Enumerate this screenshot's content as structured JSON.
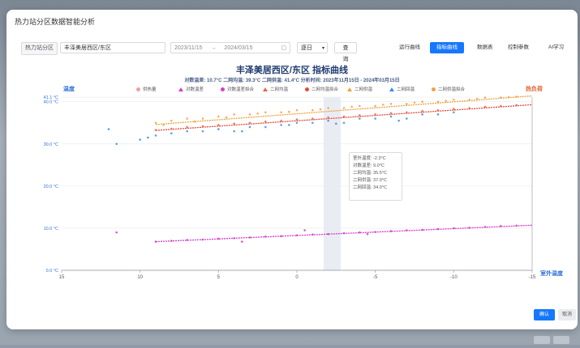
{
  "dialog": {
    "title": "热力站分区数据智能分析"
  },
  "toolbar": {
    "station_label": "热力站分区",
    "station_value": "丰泽美居西区/东区",
    "date_start": "2023/11/15",
    "date_sep": "→",
    "date_end": "2024/03/15",
    "mode_value": "逐日",
    "query_label": "查 询"
  },
  "tabs": [
    {
      "label": "运行曲线",
      "active": false
    },
    {
      "label": "指标曲线",
      "active": true
    },
    {
      "label": "数据表",
      "active": false
    },
    {
      "label": "控制参数",
      "active": false
    },
    {
      "label": "AI学习",
      "active": false
    }
  ],
  "chart": {
    "title": "丰泽美居西区/东区 指标曲线",
    "subtitle": "对数温差: 10.7°C  二网均温: 39.3°C  二网供温: 41.4°C  分析时间: 2023年11月15日 - 2024年03月15日"
  },
  "legend": [
    {
      "label": "供热量",
      "color": "#f0a0a0",
      "shape": "dot"
    },
    {
      "label": "对数温差",
      "color": "#d43fc8",
      "shape": "tri"
    },
    {
      "label": "对数温差拟合",
      "color": "#d43fc8",
      "shape": "dot"
    },
    {
      "label": "二网均温",
      "color": "#e8664a",
      "shape": "tri"
    },
    {
      "label": "二网均温拟合",
      "color": "#e84a3a",
      "shape": "dot"
    },
    {
      "label": "二网供温",
      "color": "#f2a240",
      "shape": "tri"
    },
    {
      "label": "二网回温",
      "color": "#3d8ee8",
      "shape": "tri"
    },
    {
      "label": "二网供温拟合",
      "color": "#f2a240",
      "shape": "dot"
    }
  ],
  "tooltip": {
    "lines": [
      "室外温度: -2.3°C",
      "对数温差: 9.0°C",
      "二网均温: 35.5°C",
      "二网供温: 37.0°C",
      "二网回温: 34.0°C"
    ]
  },
  "chart_data": {
    "type": "scatter",
    "title": "丰泽美居西区/东区 指标曲线",
    "xlabel": "室外温度",
    "ylabel": "温度",
    "y2label": "热负荷",
    "xlim": [
      15,
      -15
    ],
    "ylim": [
      0,
      41.1
    ],
    "x_ticks": [
      15,
      10,
      5,
      0,
      -5,
      -10,
      -15
    ],
    "y_ticks": [
      0,
      10,
      20,
      30,
      40,
      41.1
    ],
    "y_tick_labels": [
      "0.0 °C",
      "10.0 °C",
      "20.0 °C",
      "30.0 °C",
      "40.0 °C",
      "41.1 °C"
    ],
    "fits": [
      {
        "name": "二网供温拟合",
        "color": "#f2a240",
        "x": [
          9,
          -15
        ],
        "y": [
          34.6,
          41.4
        ]
      },
      {
        "name": "二网均温拟合",
        "color": "#e84a3a",
        "x": [
          9,
          -15
        ],
        "y": [
          33.2,
          39.3
        ]
      },
      {
        "name": "对数温差拟合",
        "color": "#d43fc8",
        "x": [
          9,
          -15
        ],
        "y": [
          6.8,
          10.7
        ]
      }
    ],
    "series": [
      {
        "name": "二网供温",
        "color": "#f2a240",
        "x": [
          9,
          8,
          7,
          6,
          5,
          4,
          3,
          2,
          1,
          0,
          -1,
          -2,
          -3,
          -4,
          -5,
          -6,
          -7,
          -8,
          -9,
          -10,
          -11,
          -12,
          -13,
          -14,
          8.5,
          6.5,
          4.5,
          2.5,
          0.5,
          -1.5,
          -3.5,
          -5.5,
          -7.5,
          -9.5,
          -11.5,
          -13.5
        ],
        "y": [
          35,
          35.5,
          36,
          36,
          36.5,
          37,
          37,
          37.5,
          37.5,
          38,
          38,
          38.5,
          38.5,
          39,
          39,
          39.5,
          39.5,
          40,
          40,
          40.5,
          40.5,
          41,
          41,
          41.2,
          34.5,
          35.3,
          36.3,
          37.2,
          37.6,
          38.2,
          38.8,
          39.3,
          39.8,
          40.2,
          40.7,
          41.1
        ]
      },
      {
        "name": "二网均温",
        "color": "#e8664a",
        "x": [
          9,
          8,
          7,
          6,
          5,
          4,
          3,
          2,
          1,
          0,
          -1,
          -2,
          -3,
          -4,
          -5,
          -6,
          -7,
          -8,
          -9,
          -10,
          -11,
          -12,
          -13,
          -14
        ],
        "y": [
          33.3,
          33.6,
          34,
          34.2,
          34.5,
          34.8,
          35,
          35.3,
          35.5,
          35.8,
          36,
          36.3,
          36.5,
          36.8,
          37,
          37.3,
          37.5,
          37.8,
          38,
          38.3,
          38.5,
          38.8,
          39,
          39.2
        ]
      },
      {
        "name": "二网回温",
        "color": "#3d8ee8",
        "x": [
          12,
          10,
          9,
          8,
          7,
          6,
          5,
          4,
          3,
          2,
          1,
          0,
          -1,
          -2,
          -3,
          -4,
          -5,
          -6,
          -7,
          -8,
          -9,
          -10,
          11.5,
          9.5,
          3.5,
          0.5,
          -2.5,
          -6.5
        ],
        "y": [
          33.5,
          31,
          32,
          32.5,
          33,
          33,
          33.5,
          33,
          34,
          34,
          34.5,
          35,
          35,
          35.5,
          35,
          36,
          36,
          36.5,
          36,
          37,
          37,
          37.5,
          30,
          31.5,
          33,
          34.5,
          34.8,
          35.5
        ]
      },
      {
        "name": "对数温差",
        "color": "#d43fc8",
        "x": [
          9,
          8,
          7,
          6,
          5,
          4,
          3,
          2,
          1,
          0,
          -1,
          -2,
          -3,
          -4,
          -5,
          -6,
          -7,
          -8,
          -9,
          -10,
          -11,
          -12,
          -13,
          -14,
          11.5,
          3.5,
          -0.5,
          -4.5
        ],
        "y": [
          6.8,
          7,
          7.2,
          7.3,
          7.5,
          7.6,
          7.8,
          8,
          8.1,
          8.3,
          8.5,
          8.6,
          8.8,
          9,
          9.1,
          9.3,
          9.5,
          9.6,
          9.8,
          10,
          10.1,
          10.3,
          10.5,
          10.6,
          9,
          6.8,
          9.5,
          8.6
        ]
      }
    ]
  },
  "footer": {
    "confirm_label": "确认",
    "cancel_label": "取消"
  }
}
